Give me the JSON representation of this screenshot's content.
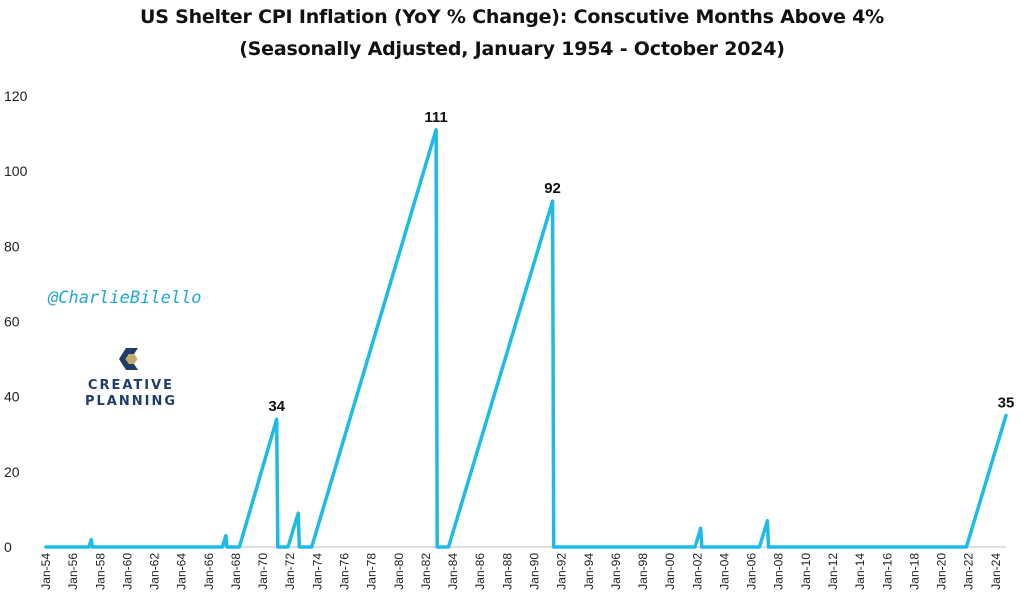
{
  "title_line1": "US Shelter CPI Inflation (YoY % Change): Conscutive Months Above 4%",
  "title_line2": "(Seasonally Adjusted, January 1954 - October 2024)",
  "watermark": "@CharlieBilello",
  "logo": {
    "line1": "CREATIVE",
    "line2": "PLANNING"
  },
  "colors": {
    "series": "#1fbbe8",
    "text": "#111111",
    "brand_navy": "#1f3d6b",
    "brand_gold": "#c8a96a",
    "watermark": "#1fa6dc"
  },
  "chart_data": {
    "type": "line",
    "title": "US Shelter CPI Inflation (YoY % Change): Conscutive Months Above 4%",
    "subtitle": "(Seasonally Adjusted, January 1954 - October 2024)",
    "xlabel": "",
    "ylabel": "",
    "ylim": [
      0,
      120
    ],
    "yticks": [
      "0",
      "20",
      "40",
      "60",
      "80",
      "100",
      "120"
    ],
    "xlim": [
      "1954-01",
      "2024-10"
    ],
    "xticks": [
      "Jan-54",
      "Jan-56",
      "Jan-58",
      "Jan-60",
      "Jan-62",
      "Jan-64",
      "Jan-66",
      "Jan-68",
      "Jan-70",
      "Jan-72",
      "Jan-74",
      "Jan-76",
      "Jan-78",
      "Jan-80",
      "Jan-82",
      "Jan-84",
      "Jan-86",
      "Jan-88",
      "Jan-90",
      "Jan-92",
      "Jan-94",
      "Jan-96",
      "Jan-98",
      "Jan-00",
      "Jan-02",
      "Jan-04",
      "Jan-06",
      "Jan-08",
      "Jan-10",
      "Jan-12",
      "Jan-14",
      "Jan-16",
      "Jan-18",
      "Jan-20",
      "Jan-22",
      "Jan-24"
    ],
    "grid": false,
    "legend": "none",
    "series": [
      {
        "values": [
          [
            "1954-01",
            0
          ],
          [
            "1957-03",
            0
          ],
          [
            "1957-05",
            2
          ],
          [
            "1957-06",
            0
          ],
          [
            "1967-01",
            0
          ],
          [
            "1967-04",
            3
          ],
          [
            "1967-05",
            0
          ],
          [
            "1968-04",
            0
          ],
          [
            "1971-01",
            34
          ],
          [
            "1971-02",
            0
          ],
          [
            "1971-11",
            0
          ],
          [
            "1972-08",
            9
          ],
          [
            "1972-09",
            0
          ],
          [
            "1973-08",
            0
          ],
          [
            "1982-10",
            111
          ],
          [
            "1982-11",
            0
          ],
          [
            "1983-09",
            0
          ],
          [
            "1991-05",
            92
          ],
          [
            "1991-06",
            0
          ],
          [
            "2001-11",
            0
          ],
          [
            "2002-04",
            5
          ],
          [
            "2002-05",
            0
          ],
          [
            "2006-08",
            0
          ],
          [
            "2007-03",
            7
          ],
          [
            "2007-04",
            0
          ],
          [
            "2021-11",
            0
          ],
          [
            "2024-10",
            35
          ]
        ]
      }
    ],
    "data_labels": [
      {
        "x": "1971-01",
        "value": 34,
        "text": "34"
      },
      {
        "x": "1982-10",
        "value": 111,
        "text": "111"
      },
      {
        "x": "1991-05",
        "value": 92,
        "text": "92"
      },
      {
        "x": "2024-10",
        "value": 35,
        "text": "35"
      }
    ]
  }
}
